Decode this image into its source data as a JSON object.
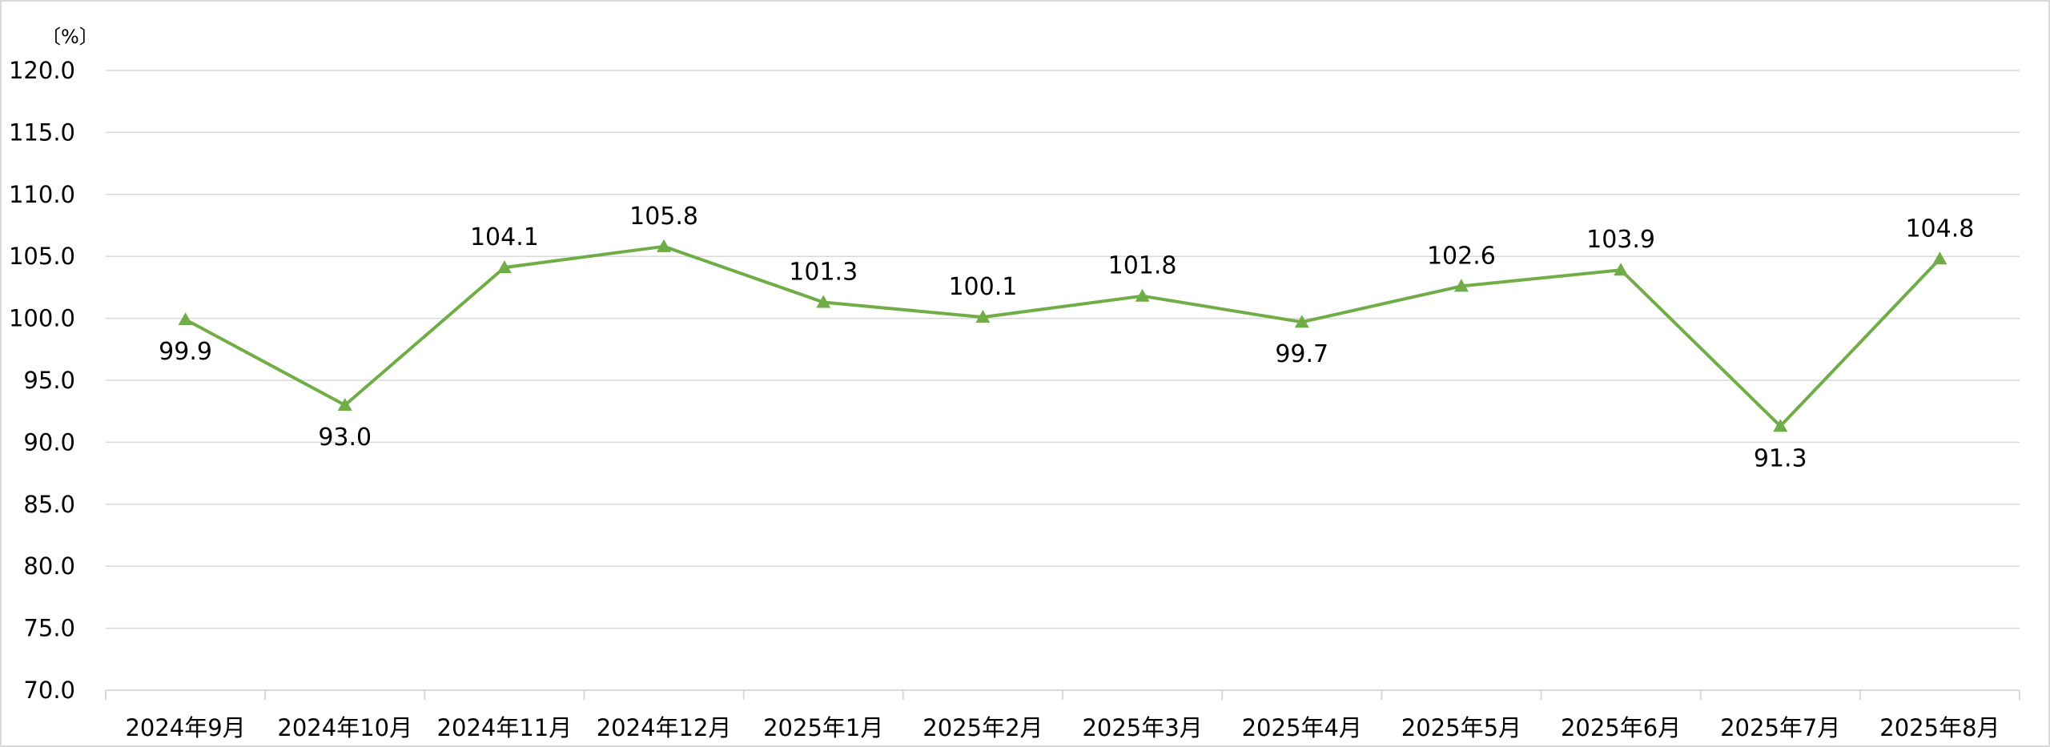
{
  "chart_data": {
    "type": "line",
    "unit_label": "〔%〕",
    "categories": [
      "2024年9月",
      "2024年10月",
      "2024年11月",
      "2024年12月",
      "2025年1月",
      "2025年2月",
      "2025年3月",
      "2025年4月",
      "2025年5月",
      "2025年6月",
      "2025年7月",
      "2025年8月"
    ],
    "series": [
      {
        "values": [
          99.9,
          93.0,
          104.1,
          105.8,
          101.3,
          100.1,
          101.8,
          99.7,
          102.6,
          103.9,
          91.3,
          104.8
        ],
        "value_labels": [
          "99.9",
          "93.0",
          "104.1",
          "105.8",
          "101.3",
          "100.1",
          "101.8",
          "99.7",
          "102.6",
          "103.9",
          "91.3",
          "104.8"
        ],
        "label_positions": [
          "below",
          "below",
          "above",
          "above",
          "above",
          "above",
          "above",
          "below",
          "above",
          "above",
          "below",
          "above"
        ],
        "color": "#70ad47",
        "marker": "triangle"
      }
    ],
    "ylim": [
      70,
      120
    ],
    "y_ticks": [
      70,
      75,
      80,
      85,
      90,
      95,
      100,
      105,
      110,
      115,
      120
    ],
    "y_tick_labels": [
      "70.0",
      "75.0",
      "80.0",
      "85.0",
      "90.0",
      "95.0",
      "100.0",
      "105.0",
      "110.0",
      "115.0",
      "120.0"
    ],
    "grid": true,
    "legend": "none"
  }
}
